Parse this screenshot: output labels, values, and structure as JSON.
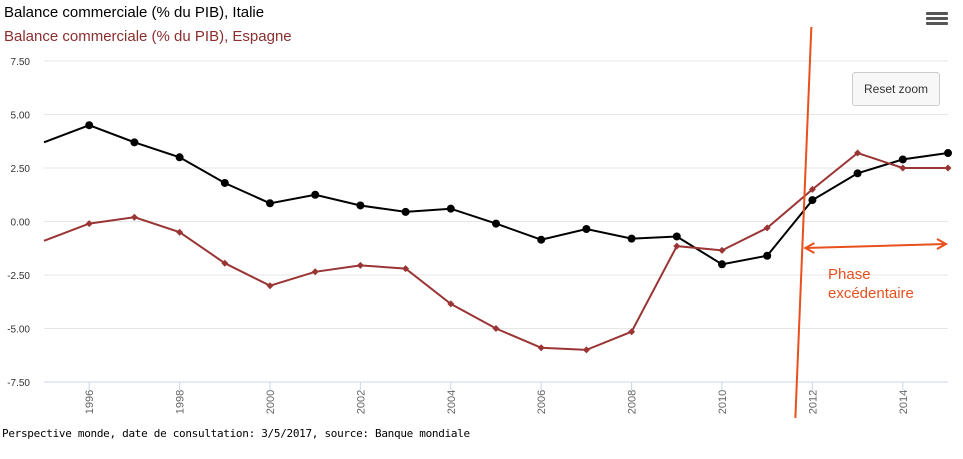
{
  "chart_data": {
    "type": "line",
    "title": "Balance commerciale (% du PIB), Italie",
    "subtitle": "Balance commerciale (% du PIB), Espagne",
    "x": [
      1995,
      1996,
      1997,
      1998,
      1999,
      2000,
      2001,
      2002,
      2003,
      2004,
      2005,
      2006,
      2007,
      2008,
      2009,
      2010,
      2011,
      2012,
      2013,
      2014,
      2015
    ],
    "x_tick_labels": [
      "1996",
      "1998",
      "2000",
      "2002",
      "2004",
      "2006",
      "2008",
      "2010",
      "2012",
      "2014"
    ],
    "x_tick_values": [
      1996,
      1998,
      2000,
      2002,
      2004,
      2006,
      2008,
      2010,
      2012,
      2014
    ],
    "y_tick_labels": [
      "7.50",
      "5.00",
      "2.50",
      "0.00",
      "-2.50",
      "-5.00",
      "-7.50"
    ],
    "y_tick_values": [
      7.5,
      5,
      2.5,
      0,
      -2.5,
      -5,
      -7.5
    ],
    "xlim": [
      1995,
      2015
    ],
    "ylim": [
      -7.5,
      7.5
    ],
    "grid": true,
    "series": [
      {
        "name": "Balance commerciale (% du PIB), Italie",
        "color": "#000000",
        "marker": "circle",
        "values": [
          3.7,
          4.5,
          3.7,
          3.0,
          1.8,
          0.85,
          1.25,
          0.75,
          0.45,
          0.6,
          -0.1,
          -0.85,
          -0.35,
          -0.8,
          -0.7,
          -2.0,
          -1.6,
          1.0,
          2.25,
          2.9,
          3.2
        ]
      },
      {
        "name": "Balance commerciale (% du PIB), Espagne",
        "color": "#9A3535",
        "marker": "diamond",
        "values": [
          -0.9,
          -0.1,
          0.2,
          -0.5,
          -1.95,
          -3.0,
          -2.35,
          -2.05,
          -2.2,
          -3.85,
          -5.0,
          -5.9,
          -6.0,
          -5.15,
          -1.15,
          -1.35,
          -0.3,
          1.5,
          3.2,
          2.5,
          2.5
        ]
      }
    ],
    "annotation": {
      "text_line1": "Phase",
      "text_line2": "excédentaire",
      "color": "#E8501E",
      "vertical_line_year": 2011.8,
      "arrow_from_year": 2011.8,
      "arrow_to_year": 2015
    }
  },
  "toolbar": {
    "reset_zoom_label": "Reset zoom",
    "menu_icon": "hamburger-menu-icon"
  },
  "footer": {
    "source_text": "Perspective monde, date de consultation: 3/5/2017, source: Banque mondiale"
  }
}
